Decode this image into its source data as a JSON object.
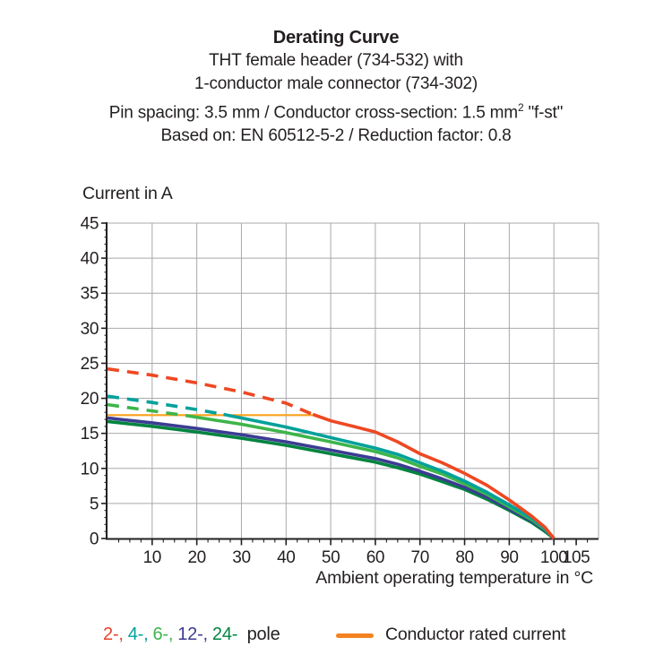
{
  "header": {
    "title": "Derating Curve",
    "line1": "THT female header (734-532) with",
    "line2": "1-conductor male connector (734-302)",
    "line3_pre": "Pin spacing: 3.5 mm / Conductor cross-section: 1.5 mm",
    "line3_sup": "2",
    "line3_post": " \"f-st\"",
    "line4": "Based on: EN 60512-5-2 / Reduction factor: 0.8"
  },
  "legend": {
    "pole_items": [
      {
        "label": "2-,",
        "color": "#e8412a"
      },
      {
        "label": "4-,",
        "color": "#00a19a"
      },
      {
        "label": "6-,",
        "color": "#3db54a"
      },
      {
        "label": "12-,",
        "color": "#3c3c93"
      },
      {
        "label": "24-",
        "color": "#00843f"
      }
    ],
    "pole_suffix": " pole",
    "rated": {
      "label": "Conductor rated current",
      "swatch_color": "#f58220"
    }
  },
  "chart_data": {
    "type": "line",
    "title": "Derating Curve",
    "xlabel": "Ambient operating temperature in °C",
    "ylabel": "Current in A",
    "xlim": [
      0,
      110
    ],
    "ylim": [
      0,
      45
    ],
    "grid": true,
    "grid_color": "#a7a9ac",
    "axis_color": "#231f20",
    "x_major_ticks": [
      10,
      20,
      30,
      40,
      50,
      60,
      70,
      80,
      90,
      100,
      105
    ],
    "x_minor_step": 2.5,
    "y_major_step": 5,
    "y_minor_step": 1,
    "rated_current_line": {
      "label": "Conductor rated current",
      "color": "#f9a11b",
      "value_amps": 17.6,
      "x_start": 0,
      "x_end": 46
    },
    "series": [
      {
        "name": "24-pole",
        "color": "#00843f",
        "dash_until": null,
        "points": [
          [
            0,
            16.7
          ],
          [
            10,
            16.0
          ],
          [
            20,
            15.2
          ],
          [
            30,
            14.3
          ],
          [
            40,
            13.3
          ],
          [
            50,
            12.1
          ],
          [
            60,
            10.9
          ],
          [
            65,
            10.1
          ],
          [
            70,
            9.2
          ],
          [
            75,
            8.1
          ],
          [
            80,
            7.0
          ],
          [
            85,
            5.6
          ],
          [
            90,
            4.0
          ],
          [
            95,
            2.3
          ],
          [
            98,
            1.0
          ],
          [
            99,
            0.5
          ],
          [
            100,
            0
          ]
        ]
      },
      {
        "name": "12-pole",
        "color": "#3c3c93",
        "dash_until": null,
        "points": [
          [
            0,
            17.2
          ],
          [
            10,
            16.5
          ],
          [
            20,
            15.7
          ],
          [
            30,
            14.8
          ],
          [
            40,
            13.8
          ],
          [
            50,
            12.6
          ],
          [
            60,
            11.4
          ],
          [
            65,
            10.6
          ],
          [
            70,
            9.6
          ],
          [
            75,
            8.5
          ],
          [
            80,
            7.3
          ],
          [
            85,
            5.9
          ],
          [
            90,
            4.2
          ],
          [
            95,
            2.5
          ],
          [
            98,
            1.2
          ],
          [
            99,
            0.6
          ],
          [
            100,
            0
          ]
        ]
      },
      {
        "name": "6-pole",
        "color": "#3db54a",
        "dash_until": 18,
        "points": [
          [
            0,
            19.1
          ],
          [
            10,
            18.2
          ],
          [
            18,
            17.5
          ],
          [
            25,
            16.8
          ],
          [
            30,
            16.3
          ],
          [
            40,
            15.1
          ],
          [
            50,
            13.8
          ],
          [
            60,
            12.4
          ],
          [
            65,
            11.5
          ],
          [
            70,
            10.3
          ],
          [
            75,
            9.2
          ],
          [
            80,
            7.8
          ],
          [
            85,
            6.3
          ],
          [
            90,
            4.5
          ],
          [
            95,
            2.7
          ],
          [
            98,
            1.3
          ],
          [
            99,
            0.65
          ],
          [
            100,
            0
          ]
        ]
      },
      {
        "name": "4-pole",
        "color": "#00a19a",
        "dash_until": 26,
        "points": [
          [
            0,
            20.3
          ],
          [
            10,
            19.4
          ],
          [
            20,
            18.4
          ],
          [
            26,
            17.7
          ],
          [
            30,
            17.2
          ],
          [
            40,
            15.9
          ],
          [
            50,
            14.4
          ],
          [
            60,
            12.9
          ],
          [
            65,
            12.0
          ],
          [
            70,
            10.8
          ],
          [
            75,
            9.6
          ],
          [
            80,
            8.2
          ],
          [
            85,
            6.6
          ],
          [
            90,
            4.8
          ],
          [
            95,
            2.9
          ],
          [
            98,
            1.4
          ],
          [
            99,
            0.7
          ],
          [
            100,
            0
          ]
        ]
      },
      {
        "name": "2-pole",
        "color": "#ee4823",
        "dash_until": 46,
        "points": [
          [
            0,
            24.2
          ],
          [
            10,
            23.3
          ],
          [
            20,
            22.2
          ],
          [
            30,
            20.9
          ],
          [
            40,
            19.3
          ],
          [
            46,
            17.7
          ],
          [
            50,
            16.8
          ],
          [
            55,
            16.0
          ],
          [
            60,
            15.2
          ],
          [
            65,
            13.8
          ],
          [
            70,
            12.1
          ],
          [
            75,
            10.8
          ],
          [
            80,
            9.3
          ],
          [
            85,
            7.6
          ],
          [
            90,
            5.5
          ],
          [
            95,
            3.2
          ],
          [
            98,
            1.6
          ],
          [
            99,
            0.8
          ],
          [
            100,
            0
          ]
        ]
      }
    ]
  }
}
